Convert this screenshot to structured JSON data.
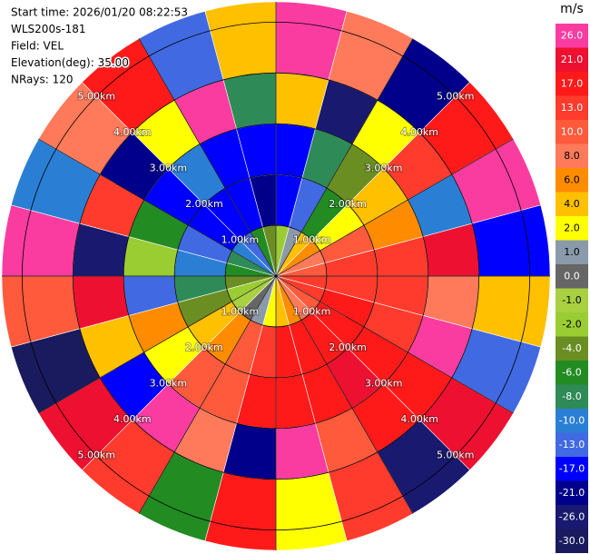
{
  "chart_data": {
    "type": "ppi",
    "annotations": [
      "Start time: 2026/01/20 08:22:53",
      "WLS200s-181",
      "Field: VEL",
      "Elevation(deg): 35.00",
      "NRays: 120"
    ],
    "rlim": [
      0,
      5.4
    ],
    "range_edges": [
      0,
      1,
      2,
      3,
      4,
      5.4
    ],
    "range_rings": [
      {
        "value": 1,
        "label": "1.00km"
      },
      {
        "value": 2,
        "label": "2.00km"
      },
      {
        "value": 3,
        "label": "3.00km"
      },
      {
        "value": 4,
        "label": "4.00km"
      },
      {
        "value": 5,
        "label": "5.00km"
      }
    ],
    "values": [
      [
        -2,
        -17,
        -17,
        4,
        26
      ],
      [
        1,
        -13,
        -8,
        -26,
        8
      ],
      [
        4,
        -6,
        -4,
        2,
        -21
      ],
      [
        6,
        2,
        4,
        13,
        17
      ],
      [
        8,
        10,
        6,
        -10,
        26
      ],
      [
        10,
        13,
        13,
        21,
        -17
      ],
      [
        13,
        13,
        13,
        8,
        4
      ],
      [
        13,
        17,
        13,
        26,
        -13
      ],
      [
        10,
        17,
        17,
        17,
        21
      ],
      [
        8,
        17,
        21,
        17,
        -26
      ],
      [
        6,
        17,
        17,
        10,
        13
      ],
      [
        4,
        17,
        17,
        26,
        2
      ],
      [
        2,
        13,
        17,
        -21,
        17
      ],
      [
        1,
        10,
        10,
        8,
        -6
      ],
      [
        0,
        6,
        10,
        26,
        13
      ],
      [
        -1,
        4,
        2,
        -17,
        21
      ],
      [
        -2,
        -4,
        6,
        4,
        -30
      ],
      [
        -4,
        -8,
        -13,
        21,
        10
      ],
      [
        -6,
        -10,
        -2,
        -26,
        26
      ],
      [
        -8,
        -13,
        -6,
        13,
        -10
      ],
      [
        -10,
        -17,
        -17,
        -21,
        8
      ],
      [
        -13,
        -17,
        -10,
        2,
        17
      ],
      [
        -6,
        -17,
        -17,
        26,
        -13
      ],
      [
        -4,
        -21,
        -17,
        -8,
        4
      ]
    ],
    "colorbar": {
      "label": "m/s",
      "ticks": [
        {
          "value": 26,
          "label": "26.0"
        },
        {
          "value": 21,
          "label": "21.0"
        },
        {
          "value": 17,
          "label": "17.0"
        },
        {
          "value": 13,
          "label": "13.0"
        },
        {
          "value": 10,
          "label": "10.0"
        },
        {
          "value": 8,
          "label": "8.0"
        },
        {
          "value": 6,
          "label": "6.0"
        },
        {
          "value": 4,
          "label": "4.0"
        },
        {
          "value": 2,
          "label": "2.0"
        },
        {
          "value": 1,
          "label": "1.0"
        },
        {
          "value": 0,
          "label": "0.0"
        },
        {
          "value": -1,
          "label": "-1.0"
        },
        {
          "value": -2,
          "label": "-2.0"
        },
        {
          "value": -4,
          "label": "-4.0"
        },
        {
          "value": -6,
          "label": "-6.0"
        },
        {
          "value": -8,
          "label": "-8.0"
        },
        {
          "value": -10,
          "label": "-10.0"
        },
        {
          "value": -13,
          "label": "-13.0"
        },
        {
          "value": -17,
          "label": "-17.0"
        },
        {
          "value": -21,
          "label": "-21.0"
        },
        {
          "value": -26,
          "label": "-26.0"
        },
        {
          "value": -30,
          "label": "-30.0"
        }
      ],
      "colors": [
        "#fa3ca0",
        "#ee1030",
        "#ff1a1a",
        "#ff3b2e",
        "#ff5a3c",
        "#ff7a5a",
        "#ff8c00",
        "#ffc000",
        "#ffff00",
        "#8a9aaa",
        "#666666",
        "#a8d040",
        "#9acd32",
        "#6b8e23",
        "#228b22",
        "#2e8b57",
        "#2a7fd5",
        "#4169e1",
        "#0000ff",
        "#00008b",
        "#191970",
        "#1a1a5e"
      ]
    }
  }
}
